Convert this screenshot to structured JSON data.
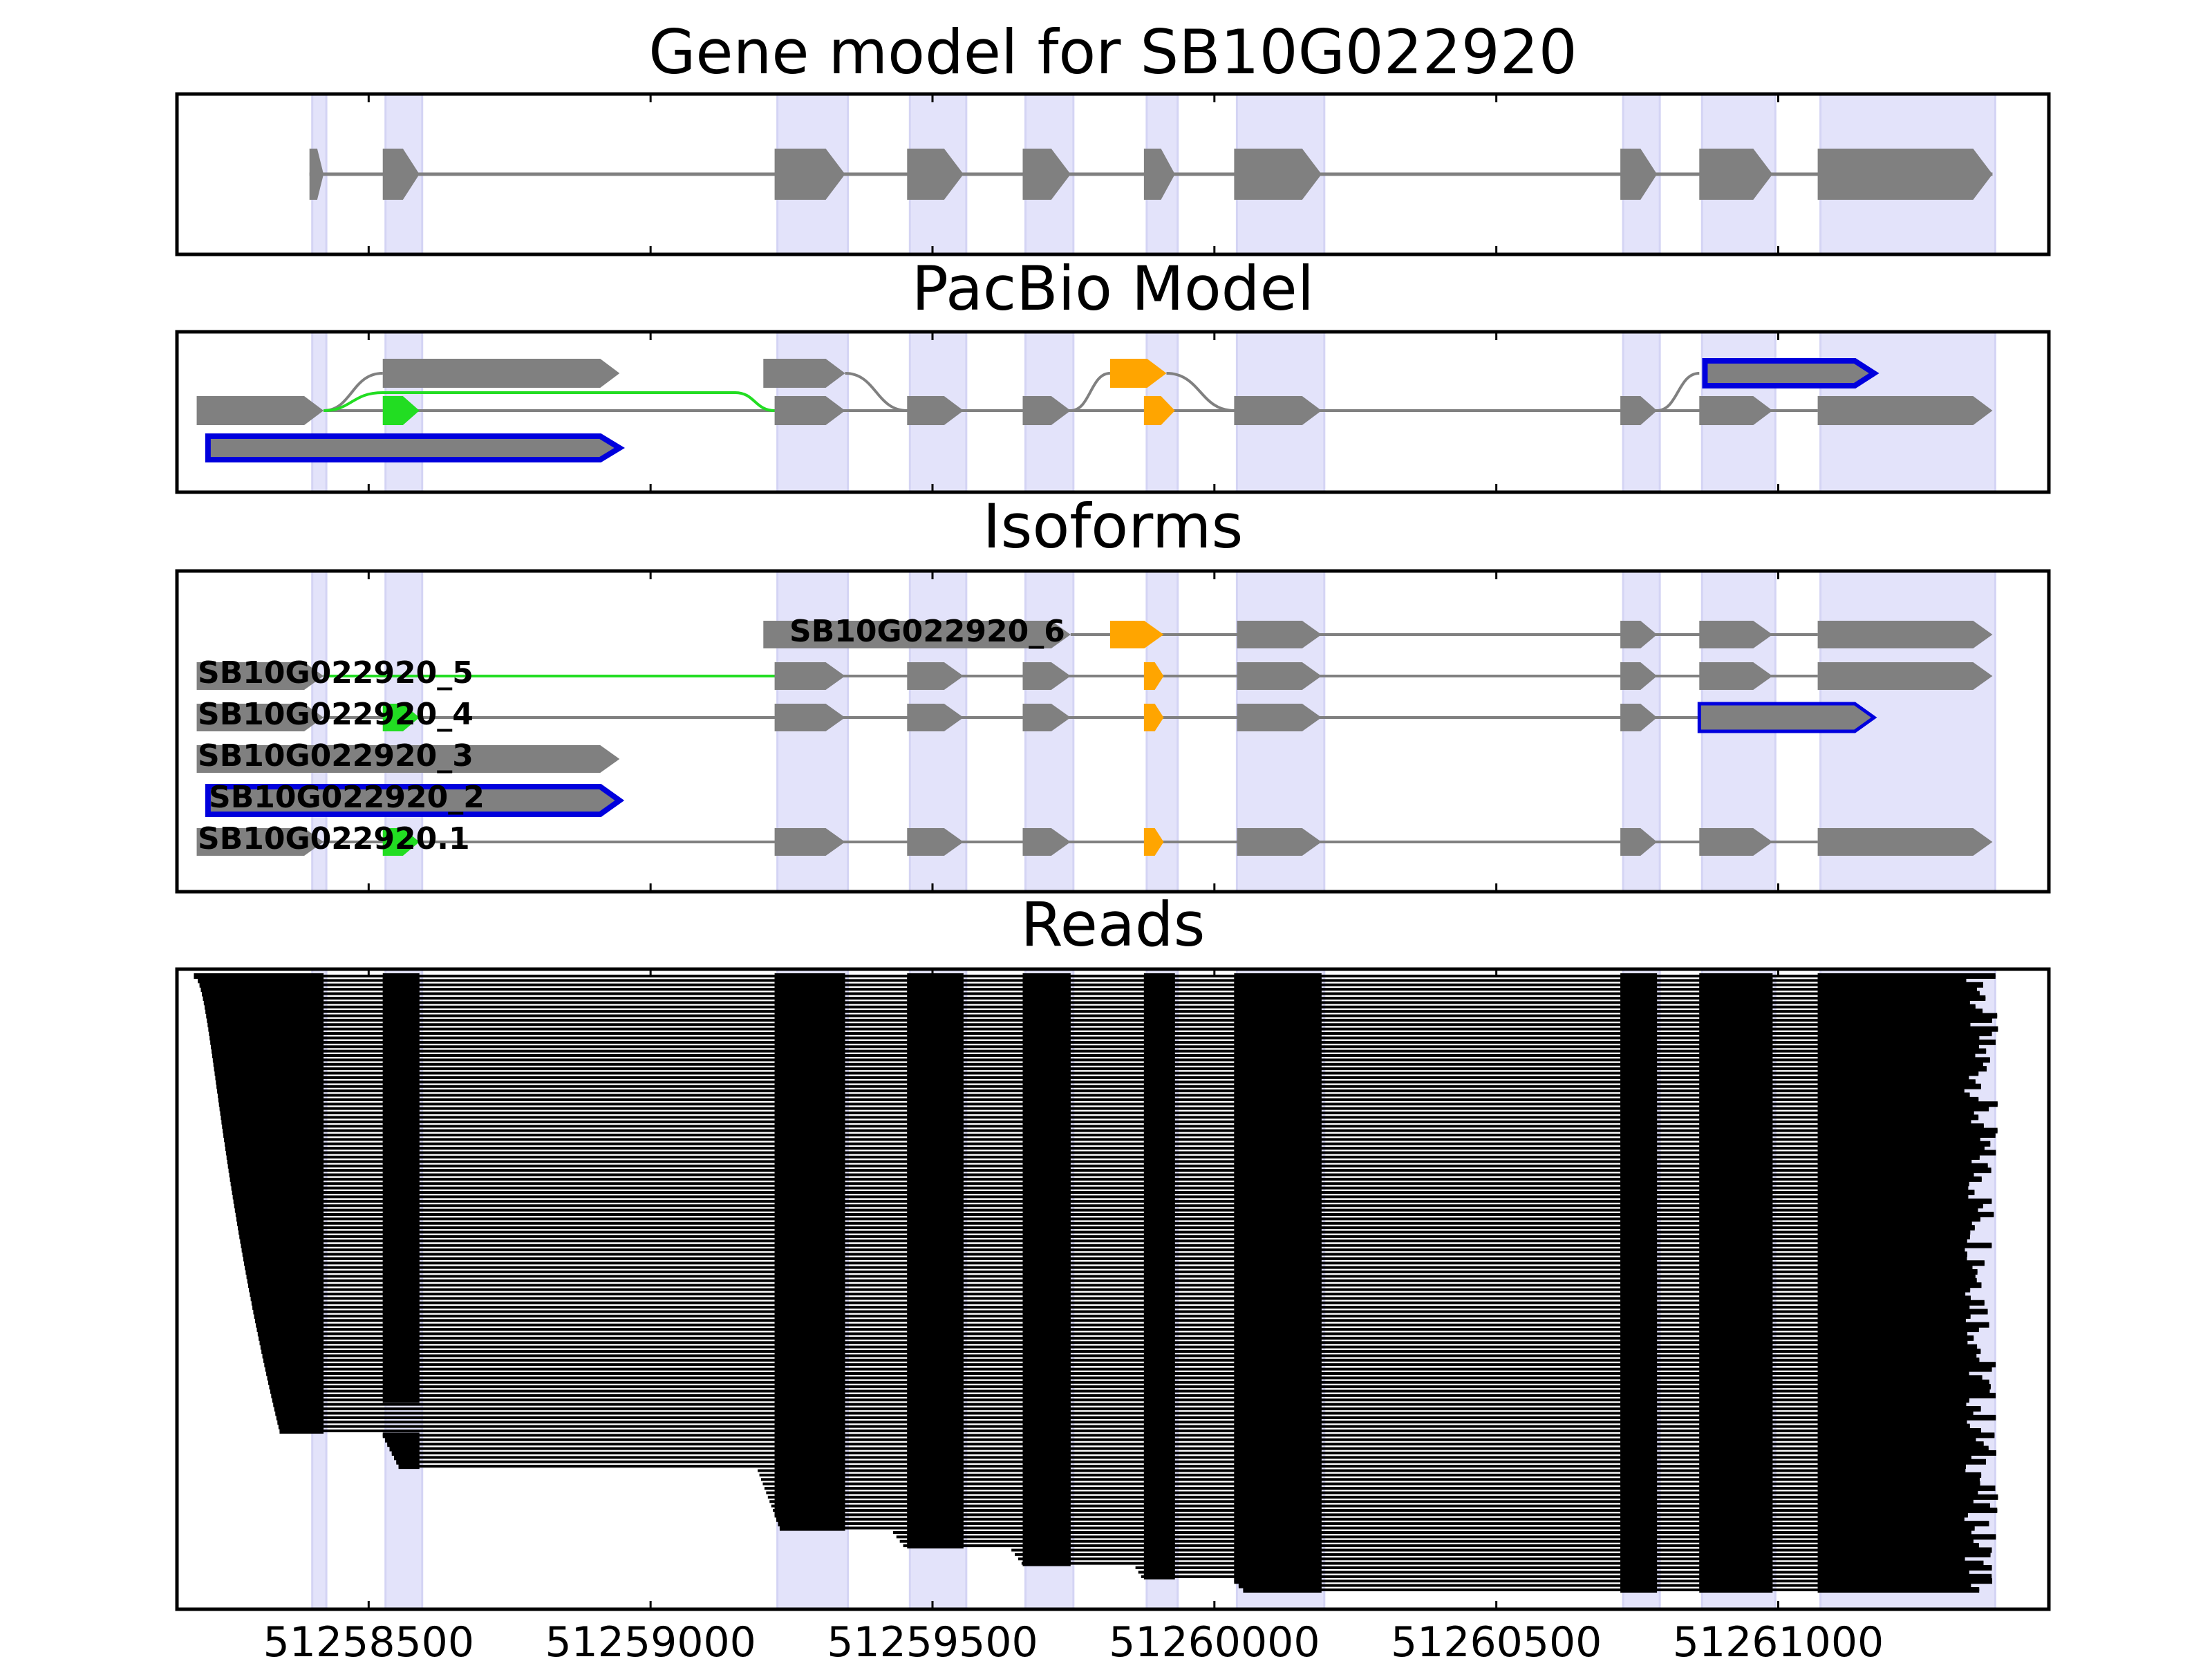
{
  "figure": {
    "panel_titles": [
      "Gene model for SB10G022920",
      "PacBio Model",
      "Isoforms",
      "Reads"
    ]
  },
  "x_axis": {
    "range": [
      51258160,
      51261480
    ],
    "ticks": [
      51258500,
      51259000,
      51259500,
      51260000,
      51260500,
      51261000
    ],
    "tick_labels": [
      "51258500",
      "51259000",
      "51259500",
      "51260000",
      "51260500",
      "51261000"
    ]
  },
  "colors": {
    "exon": "#808080",
    "intron": "#808080",
    "highlight_band": "#e3e3fa",
    "alt_junction": "#22dd22",
    "alt_exon": "#ffa500",
    "outline": "#0000dd",
    "read": "#000000"
  },
  "chart_data": [
    {
      "type": "gene_structure",
      "title": "Gene model for SB10G022920",
      "exons": [
        [
          51258395,
          51258420
        ],
        [
          51258525,
          51258590
        ],
        [
          51259220,
          51259345
        ],
        [
          51259455,
          51259555
        ],
        [
          51259660,
          51259745
        ],
        [
          51259875,
          51259930
        ],
        [
          51260035,
          51260190
        ],
        [
          51260720,
          51260785
        ],
        [
          51260860,
          51260990
        ],
        [
          51261070,
          51261380
        ]
      ]
    },
    {
      "type": "gene_structure",
      "title": "PacBio Model",
      "rows": [
        {
          "segments": [
            [
              51258525,
              51258945
            ]
          ]
        },
        {
          "segments": [
            [
              51259200,
              51259345
            ],
            [
              51259815,
              51259915
            ],
            [
              51260870,
              51261170
            ]
          ]
        },
        {
          "segments": [
            [
              51258195,
              51258420
            ],
            [
              51258525,
              51258590
            ],
            [
              51259220,
              51259345
            ],
            [
              51259455,
              51259555
            ],
            [
              51259660,
              51259745
            ],
            [
              51259875,
              51259930
            ],
            [
              51260035,
              51260190
            ],
            [
              51260720,
              51260785
            ],
            [
              51260860,
              51260990
            ],
            [
              51261070,
              51261380
            ]
          ]
        },
        {
          "segments": [
            [
              51258215,
              51258945
            ]
          ]
        }
      ]
    },
    {
      "type": "isoforms",
      "title": "Isoforms",
      "isoforms": [
        {
          "label": "SB10G022920_6",
          "segments": [
            [
              51259200,
              51259745
            ],
            [
              51259815,
              51259910
            ],
            [
              51260040,
              51260190
            ],
            [
              51260720,
              51260785
            ],
            [
              51260860,
              51260990
            ],
            [
              51261070,
              51261380
            ]
          ]
        },
        {
          "label": "SB10G022920_5",
          "segments": [
            [
              51258195,
              51258420
            ],
            [
              51259220,
              51259345
            ],
            [
              51259455,
              51259555
            ],
            [
              51259660,
              51259745
            ],
            [
              51259875,
              51259910
            ],
            [
              51260040,
              51260190
            ],
            [
              51260720,
              51260785
            ],
            [
              51260860,
              51260990
            ],
            [
              51261070,
              51261380
            ]
          ]
        },
        {
          "label": "SB10G022920_4",
          "segments": [
            [
              51258195,
              51258420
            ],
            [
              51258525,
              51258590
            ],
            [
              51259220,
              51259345
            ],
            [
              51259455,
              51259555
            ],
            [
              51259660,
              51259745
            ],
            [
              51259875,
              51259910
            ],
            [
              51260040,
              51260190
            ],
            [
              51260720,
              51260785
            ],
            [
              51260860,
              51261170
            ]
          ]
        },
        {
          "label": "SB10G022920_3",
          "segments": [
            [
              51258195,
              51258945
            ]
          ]
        },
        {
          "label": "SB10G022920_2",
          "segments": [
            [
              51258215,
              51258945
            ]
          ]
        },
        {
          "label": "SB10G022920.1",
          "segments": [
            [
              51258195,
              51258420
            ],
            [
              51258525,
              51258590
            ],
            [
              51259220,
              51259345
            ],
            [
              51259455,
              51259555
            ],
            [
              51259660,
              51259745
            ],
            [
              51259875,
              51259910
            ],
            [
              51260040,
              51260190
            ],
            [
              51260720,
              51260785
            ],
            [
              51260860,
              51260990
            ],
            [
              51261070,
              51261380
            ]
          ]
        }
      ]
    },
    {
      "type": "reads",
      "title": "Reads",
      "read_count": 140,
      "span": [
        51258190,
        51261390
      ]
    }
  ]
}
